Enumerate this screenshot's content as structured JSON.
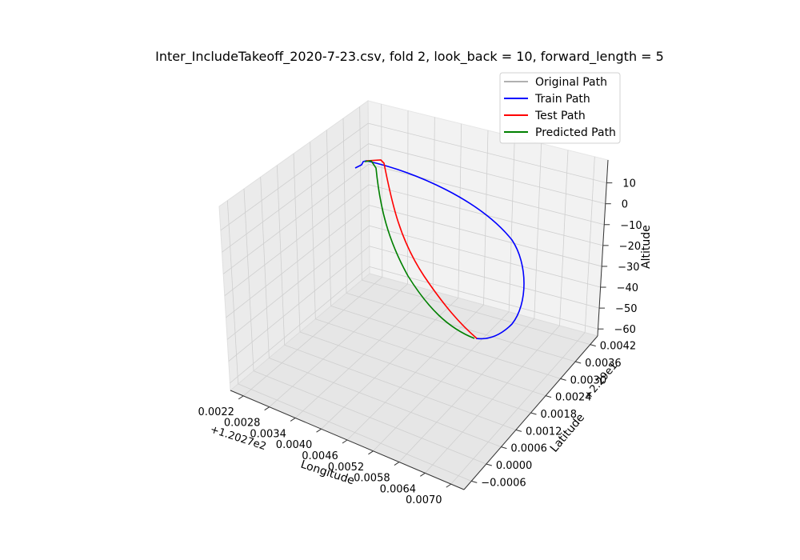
{
  "chart_data": {
    "type": "line3d",
    "title": "Inter_IncludeTakeoff_2020-7-23.csv, fold 2, look_back = 10, forward_length = 5",
    "x_axis": {
      "label": "Longitude",
      "offset_text": "+1.2027e2",
      "ticks": [
        "0.0022",
        "0.0028",
        "0.0034",
        "0.0040",
        "0.0046",
        "0.0052",
        "0.0058",
        "0.0064",
        "0.0070"
      ]
    },
    "y_axis": {
      "label": "Latitude",
      "offset_text": "+2.29e1",
      "ticks": [
        "−0.0006",
        "0.0000",
        "0.0006",
        "0.0012",
        "0.0018",
        "0.0024",
        "0.0030",
        "0.0036",
        "0.0042"
      ]
    },
    "z_axis": {
      "label": "Altitude",
      "ticks": [
        "10",
        "0",
        "−10",
        "−20",
        "−30",
        "−40",
        "−50",
        "−60"
      ]
    },
    "grid": true,
    "legend_position": "top-right",
    "series": [
      {
        "name": "Original Path",
        "color": "#b0b0b0"
      },
      {
        "name": "Train Path",
        "color": "#0000ff"
      },
      {
        "name": "Test Path",
        "color": "#ff0000"
      },
      {
        "name": "Predicted Path",
        "color": "#008000"
      }
    ]
  }
}
